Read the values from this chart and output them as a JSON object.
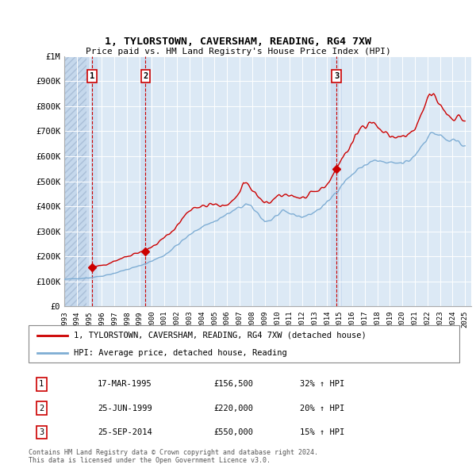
{
  "title": "1, TYLORSTOWN, CAVERSHAM, READING, RG4 7XW",
  "subtitle": "Price paid vs. HM Land Registry's House Price Index (HPI)",
  "legend_label1": "1, TYLORSTOWN, CAVERSHAM, READING, RG4 7XW (detached house)",
  "legend_label2": "HPI: Average price, detached house, Reading",
  "sale_color": "#cc0000",
  "hpi_color": "#7eadd4",
  "background_chart": "#dce9f5",
  "annotation_col_color": "#ccddf0",
  "hatch_bg_color": "#c5d8ec",
  "grid_color": "#ffffff",
  "ann_box_color": "#cc0000",
  "ylim": [
    0,
    1000000
  ],
  "yticks": [
    0,
    100000,
    200000,
    300000,
    400000,
    500000,
    600000,
    700000,
    800000,
    900000,
    1000000
  ],
  "ytick_labels": [
    "£0",
    "£100K",
    "£200K",
    "£300K",
    "£400K",
    "£500K",
    "£600K",
    "£700K",
    "£800K",
    "£900K",
    "£1M"
  ],
  "annotations": [
    {
      "num": "1",
      "date": "17-MAR-1995",
      "x_year": 1995.21,
      "price": 156500,
      "label_price": "£156,500",
      "hpi_pct": "32% ↑ HPI"
    },
    {
      "num": "2",
      "date": "25-JUN-1999",
      "x_year": 1999.48,
      "price": 220000,
      "label_price": "£220,000",
      "hpi_pct": "20% ↑ HPI"
    },
    {
      "num": "3",
      "date": "25-SEP-2014",
      "x_year": 2014.73,
      "price": 550000,
      "label_price": "£550,000",
      "hpi_pct": "15% ↑ HPI"
    }
  ],
  "xlim": [
    1993.0,
    2025.5
  ],
  "xticks": [
    1993,
    1994,
    1995,
    1996,
    1997,
    1998,
    1999,
    2000,
    2001,
    2002,
    2003,
    2004,
    2005,
    2006,
    2007,
    2008,
    2009,
    2010,
    2011,
    2012,
    2013,
    2014,
    2015,
    2016,
    2017,
    2018,
    2019,
    2020,
    2021,
    2022,
    2023,
    2024,
    2025
  ],
  "ann_y": 920000,
  "footnote": "Contains HM Land Registry data © Crown copyright and database right 2024.\nThis data is licensed under the Open Government Licence v3.0."
}
